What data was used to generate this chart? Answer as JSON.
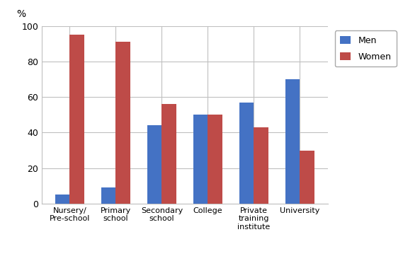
{
  "categories": [
    "Nursery/\nPre-school",
    "Primary\nschool",
    "Secondary\nschool",
    "College",
    "Private\ntraining\ninstitute",
    "University"
  ],
  "men_values": [
    5,
    9,
    44,
    50,
    57,
    70
  ],
  "women_values": [
    95,
    91,
    56,
    50,
    43,
    30
  ],
  "men_color": "#4472C4",
  "women_color": "#BE4B48",
  "ylim": [
    0,
    100
  ],
  "yticks": [
    0,
    20,
    40,
    60,
    80,
    100
  ],
  "legend_labels": [
    "Men",
    "Women"
  ],
  "bar_width": 0.32,
  "background_color": "#FFFFFF",
  "grid_color": "#C0C0C0",
  "percent_label": "%"
}
